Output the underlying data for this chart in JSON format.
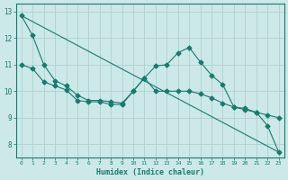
{
  "xlabel": "Humidex (Indice chaleur)",
  "xlim": [
    -0.5,
    23.5
  ],
  "ylim": [
    7.5,
    13.3
  ],
  "yticks": [
    8,
    9,
    10,
    11,
    12,
    13
  ],
  "xticks": [
    0,
    1,
    2,
    3,
    4,
    5,
    6,
    7,
    8,
    9,
    10,
    11,
    12,
    13,
    14,
    15,
    16,
    17,
    18,
    19,
    20,
    21,
    22,
    23
  ],
  "background_color": "#cce8e8",
  "grid_color": "#aacece",
  "line_color": "#1a7a6e",
  "line1_x": [
    0,
    1,
    2,
    3,
    4,
    5,
    6,
    7,
    8,
    9,
    10,
    11,
    12,
    13,
    14,
    15,
    16,
    17,
    18,
    19,
    20,
    21,
    22,
    23
  ],
  "line1_y": [
    12.85,
    12.1,
    11.0,
    10.4,
    10.2,
    9.85,
    9.65,
    9.65,
    9.6,
    9.55,
    10.0,
    10.5,
    10.95,
    11.0,
    11.45,
    11.65,
    11.1,
    10.6,
    10.25,
    9.4,
    9.35,
    9.2,
    8.7,
    7.7
  ],
  "line2_x": [
    0,
    1,
    2,
    3,
    4,
    5,
    6,
    7,
    8,
    9,
    10,
    11,
    12,
    13,
    14,
    15,
    16,
    17,
    18,
    19,
    20,
    21,
    22,
    23
  ],
  "line2_y": [
    11.0,
    10.85,
    10.35,
    10.2,
    10.05,
    9.65,
    9.6,
    9.6,
    9.5,
    9.5,
    10.0,
    10.5,
    10.0,
    10.0,
    10.0,
    10.0,
    9.9,
    9.75,
    9.55,
    9.4,
    9.3,
    9.2,
    9.1,
    9.0
  ],
  "line3_x": [
    0,
    23
  ],
  "line3_y": [
    12.85,
    7.7
  ],
  "marker": "D",
  "markersize": 2.5,
  "linewidth": 0.8
}
